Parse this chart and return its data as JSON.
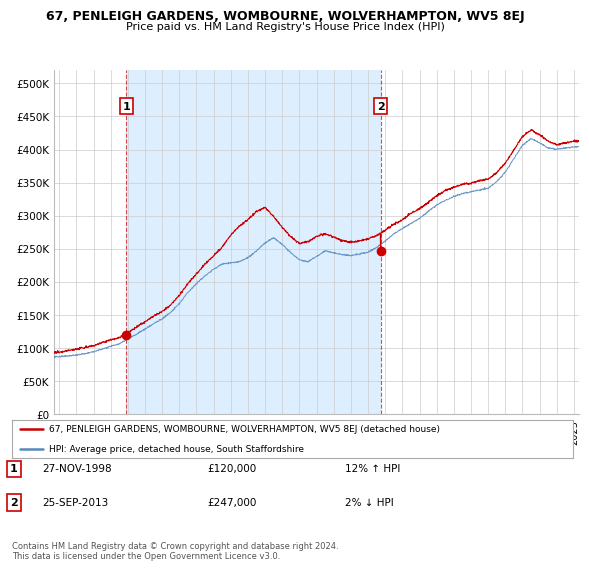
{
  "title": "67, PENLEIGH GARDENS, WOMBOURNE, WOLVERHAMPTON, WV5 8EJ",
  "subtitle": "Price paid vs. HM Land Registry's House Price Index (HPI)",
  "background_color": "#ffffff",
  "plot_bg_color": "#ffffff",
  "grid_color": "#cccccc",
  "shade_color": "#ddeeff",
  "sale1": {
    "date": 1998.92,
    "price": 120000,
    "label": "1",
    "date_str": "27-NOV-1998"
  },
  "sale2": {
    "date": 2013.73,
    "price": 247000,
    "label": "2",
    "date_str": "25-SEP-2013"
  },
  "ylim": [
    0,
    520000
  ],
  "xlim_start": 1994.7,
  "xlim_end": 2025.3,
  "yticks": [
    0,
    50000,
    100000,
    150000,
    200000,
    250000,
    300000,
    350000,
    400000,
    450000,
    500000
  ],
  "ytick_labels": [
    "£0",
    "£50K",
    "£100K",
    "£150K",
    "£200K",
    "£250K",
    "£300K",
    "£350K",
    "£400K",
    "£450K",
    "£500K"
  ],
  "red_line_color": "#cc0000",
  "blue_line_color": "#5588bb",
  "sale_dot_color": "#cc0000",
  "legend_red_label": "67, PENLEIGH GARDENS, WOMBOURNE, WOLVERHAMPTON, WV5 8EJ (detached house)",
  "legend_blue_label": "HPI: Average price, detached house, South Staffordshire",
  "footnote": "Contains HM Land Registry data © Crown copyright and database right 2024.\nThis data is licensed under the Open Government Licence v3.0.",
  "table_row1": [
    "1",
    "27-NOV-1998",
    "£120,000",
    "12% ↑ HPI"
  ],
  "table_row2": [
    "2",
    "25-SEP-2013",
    "£247,000",
    "2% ↓ HPI"
  ],
  "hpi_vals": {
    "1995.0": 88000,
    "1995.5": 89500,
    "1996.0": 91000,
    "1996.5": 93000,
    "1997.0": 96000,
    "1997.5": 100000,
    "1998.0": 104000,
    "1998.5": 108000,
    "1999.0": 115000,
    "1999.5": 122000,
    "2000.0": 130000,
    "2000.5": 138000,
    "2001.0": 145000,
    "2001.5": 155000,
    "2002.0": 168000,
    "2002.5": 185000,
    "2003.0": 198000,
    "2003.5": 210000,
    "2004.0": 220000,
    "2004.5": 228000,
    "2005.0": 230000,
    "2005.5": 232000,
    "2006.0": 238000,
    "2006.5": 248000,
    "2007.0": 260000,
    "2007.5": 268000,
    "2008.0": 258000,
    "2008.5": 245000,
    "2009.0": 235000,
    "2009.5": 232000,
    "2010.0": 240000,
    "2010.5": 248000,
    "2011.0": 245000,
    "2011.5": 242000,
    "2012.0": 240000,
    "2012.5": 242000,
    "2013.0": 245000,
    "2013.5": 252000,
    "2014.0": 262000,
    "2014.5": 272000,
    "2015.0": 280000,
    "2015.5": 288000,
    "2016.0": 295000,
    "2016.5": 305000,
    "2017.0": 315000,
    "2017.5": 322000,
    "2018.0": 328000,
    "2018.5": 332000,
    "2019.0": 335000,
    "2019.5": 338000,
    "2020.0": 340000,
    "2020.5": 350000,
    "2021.0": 365000,
    "2021.5": 385000,
    "2022.0": 405000,
    "2022.5": 415000,
    "2023.0": 408000,
    "2023.5": 400000,
    "2024.0": 398000,
    "2024.5": 400000,
    "2025.0": 402000
  },
  "red_vals": {
    "1995.0": 94000,
    "1995.5": 96000,
    "1996.0": 98000,
    "1996.5": 100000,
    "1997.0": 103000,
    "1997.5": 107000,
    "1998.0": 111000,
    "1998.5": 115000,
    "1999.0": 122000,
    "1999.5": 130000,
    "2000.0": 138000,
    "2000.5": 147000,
    "2001.0": 154000,
    "2001.5": 164000,
    "2002.0": 178000,
    "2002.5": 196000,
    "2003.0": 210000,
    "2003.5": 225000,
    "2004.0": 238000,
    "2004.5": 250000,
    "2005.0": 268000,
    "2005.5": 282000,
    "2006.0": 292000,
    "2006.5": 305000,
    "2007.0": 312000,
    "2007.5": 298000,
    "2008.0": 282000,
    "2008.5": 268000,
    "2009.0": 258000,
    "2009.5": 260000,
    "2010.0": 268000,
    "2010.5": 272000,
    "2011.0": 268000,
    "2011.5": 262000,
    "2012.0": 260000,
    "2012.5": 262000,
    "2013.0": 265000,
    "2013.5": 270000,
    "2014.0": 278000,
    "2014.5": 288000,
    "2015.0": 295000,
    "2015.5": 305000,
    "2016.0": 312000,
    "2016.5": 322000,
    "2017.0": 332000,
    "2017.5": 340000,
    "2018.0": 345000,
    "2018.5": 350000,
    "2019.0": 352000,
    "2019.5": 355000,
    "2020.0": 358000,
    "2020.5": 368000,
    "2021.0": 382000,
    "2021.5": 402000,
    "2022.0": 422000,
    "2022.5": 432000,
    "2023.0": 425000,
    "2023.5": 415000,
    "2024.0": 410000,
    "2024.5": 412000,
    "2025.0": 415000
  }
}
